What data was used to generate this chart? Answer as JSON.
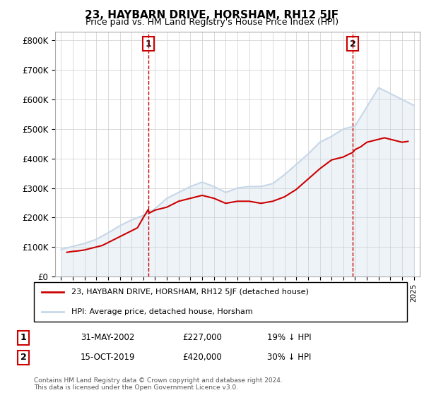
{
  "title": "23, HAYBARN DRIVE, HORSHAM, RH12 5JF",
  "subtitle": "Price paid vs. HM Land Registry's House Price Index (HPI)",
  "ylabel_ticks": [
    "£0",
    "£100K",
    "£200K",
    "£300K",
    "£400K",
    "£500K",
    "£600K",
    "£700K",
    "£800K"
  ],
  "ytick_values": [
    0,
    100000,
    200000,
    300000,
    400000,
    500000,
    600000,
    700000,
    800000
  ],
  "ylim": [
    0,
    830000
  ],
  "xlim_start": 1995.0,
  "xlim_end": 2025.5,
  "transaction1": {
    "date": 2002.42,
    "price": 227000,
    "label": "1"
  },
  "transaction2": {
    "date": 2019.79,
    "price": 420000,
    "label": "2"
  },
  "legend_entries": [
    "23, HAYBARN DRIVE, HORSHAM, RH12 5JF (detached house)",
    "HPI: Average price, detached house, Horsham"
  ],
  "table_rows": [
    [
      "1",
      "31-MAY-2002",
      "£227,000",
      "19% ↓ HPI"
    ],
    [
      "2",
      "15-OCT-2019",
      "£420,000",
      "30% ↓ HPI"
    ]
  ],
  "footer": "Contains HM Land Registry data © Crown copyright and database right 2024.\nThis data is licensed under the Open Government Licence v3.0.",
  "line_color_property": "#c8d8e8",
  "line_color_paid": "#cc0000",
  "grid_color": "#cccccc",
  "background_color": "#ffffff",
  "hpi_years": [
    1995,
    1996,
    1997,
    1998,
    1999,
    2000,
    2001,
    2002,
    2003,
    2004,
    2005,
    2006,
    2007,
    2008,
    2009,
    2010,
    2011,
    2012,
    2013,
    2014,
    2015,
    2016,
    2017,
    2018,
    2019,
    2020,
    2021,
    2022,
    2023,
    2024,
    2025
  ],
  "hpi_values": [
    92000,
    102000,
    112000,
    126000,
    148000,
    172000,
    192000,
    207000,
    230000,
    265000,
    285000,
    305000,
    320000,
    305000,
    285000,
    300000,
    305000,
    305000,
    315000,
    345000,
    380000,
    415000,
    455000,
    475000,
    500000,
    510000,
    575000,
    640000,
    620000,
    600000,
    580000
  ],
  "paid_years": [
    1995.5,
    1996.0,
    1996.5,
    1997.0,
    1997.5,
    1998.0,
    1998.5,
    1999.0,
    1999.5,
    2000.0,
    2000.5,
    2001.0,
    2001.5,
    2002.0,
    2002.42,
    2002.5,
    2003.0,
    2004.0,
    2005.0,
    2006.0,
    2006.5,
    2007.0,
    2008.0,
    2009.0,
    2010.0,
    2011.0,
    2012.0,
    2013.0,
    2014.0,
    2015.0,
    2016.0,
    2017.0,
    2018.0,
    2018.5,
    2019.0,
    2019.5,
    2019.79,
    2020.0,
    2020.5,
    2021.0,
    2021.5,
    2022.0,
    2022.5,
    2023.0,
    2023.5,
    2024.0,
    2024.5
  ],
  "paid_values": [
    82000,
    85000,
    87000,
    90000,
    95000,
    100000,
    105000,
    115000,
    125000,
    135000,
    145000,
    155000,
    165000,
    200000,
    227000,
    215000,
    225000,
    235000,
    255000,
    265000,
    270000,
    275000,
    265000,
    248000,
    255000,
    255000,
    248000,
    255000,
    270000,
    295000,
    330000,
    365000,
    395000,
    400000,
    405000,
    415000,
    420000,
    430000,
    440000,
    455000,
    460000,
    465000,
    470000,
    465000,
    460000,
    455000,
    458000
  ]
}
